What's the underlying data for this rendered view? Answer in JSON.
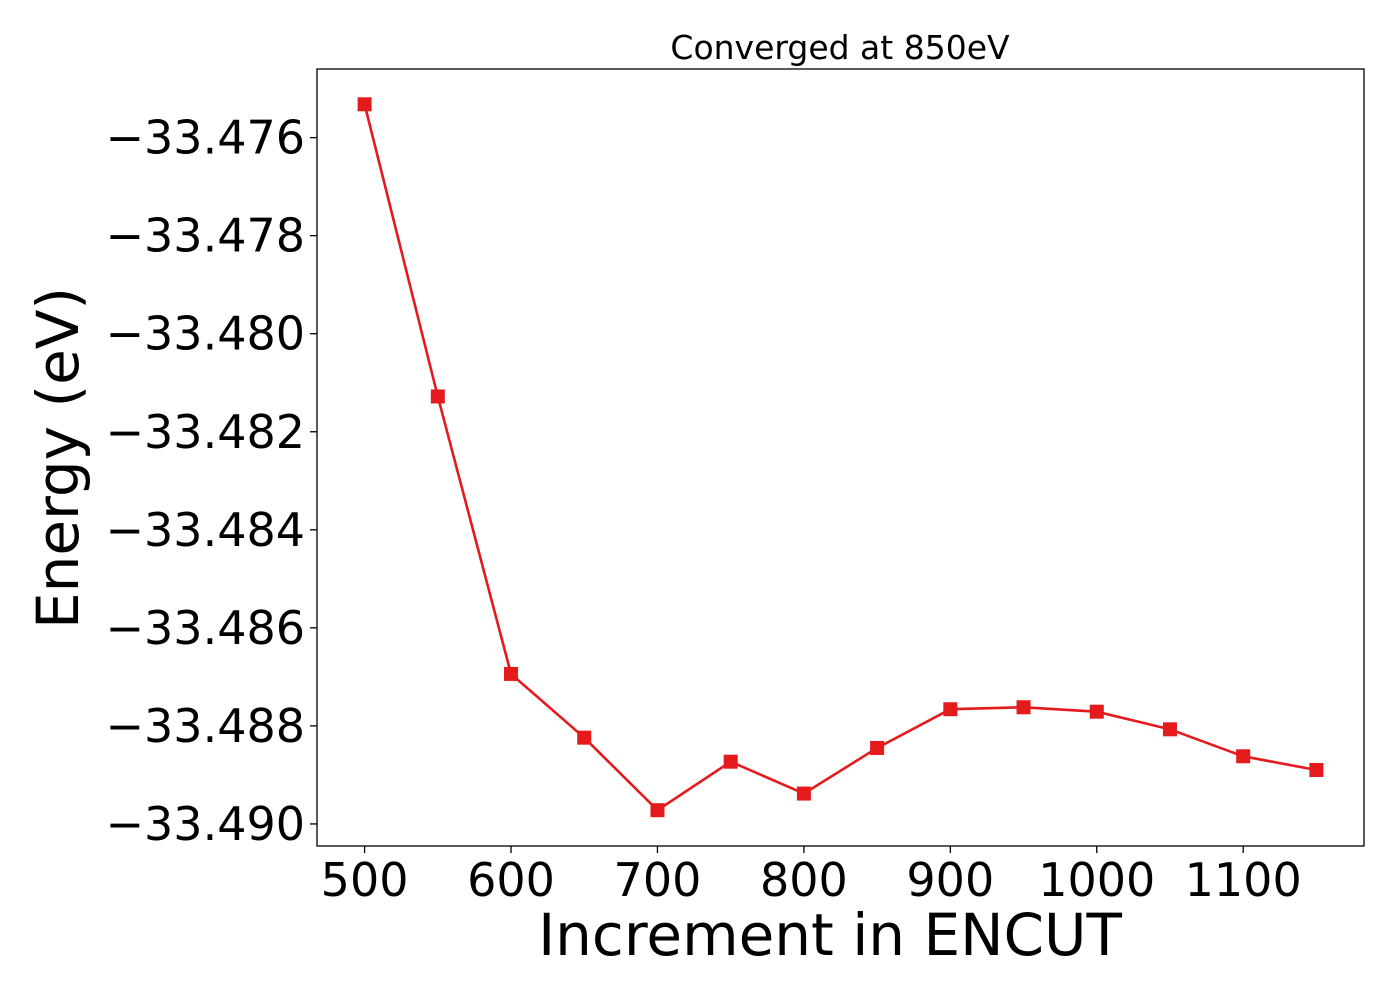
{
  "chart_data": {
    "type": "line",
    "title": "Converged at 850eV",
    "xlabel": "Increment in ENCUT",
    "ylabel": "Energy (eV)",
    "x": [
      500,
      550,
      600,
      650,
      700,
      750,
      800,
      850,
      900,
      950,
      1000,
      1050,
      1100,
      1150
    ],
    "series": [
      {
        "values": [
          -33.47532,
          -33.48128,
          -33.48694,
          -33.48824,
          -33.48972,
          -33.48873,
          -33.48938,
          -33.48845,
          -33.48766,
          -33.48762,
          -33.48771,
          -33.48807,
          -33.48862,
          -33.4889
        ],
        "color": "#e41a1c",
        "marker": "square"
      }
    ],
    "xticks": [
      500,
      600,
      700,
      800,
      900,
      1000,
      1100
    ],
    "xtick_labels": [
      "500",
      "600",
      "700",
      "800",
      "900",
      "1000",
      "1100"
    ],
    "yticks": [
      -33.476,
      -33.478,
      -33.48,
      -33.482,
      -33.484,
      -33.486,
      -33.488,
      -33.49
    ],
    "ytick_labels": [
      "−33.476",
      "−33.478",
      "−33.480",
      "−33.482",
      "−33.484",
      "−33.486",
      "−33.488",
      "−33.490"
    ],
    "xlim": [
      467.5,
      1182.5
    ],
    "ylim": [
      -33.49045,
      -33.4746
    ],
    "grid": false,
    "legend": "none"
  }
}
